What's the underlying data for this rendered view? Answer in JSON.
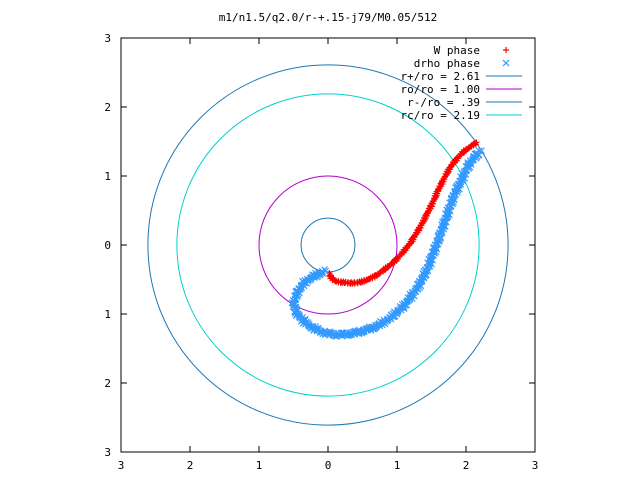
{
  "chart_data": {
    "type": "scatter",
    "title": "m1/n1.5/q2.0/r-+.15-j79/M0.05/512",
    "xlabel": "",
    "ylabel": "",
    "xlim": [
      -3,
      3
    ],
    "ylim": [
      -3,
      3
    ],
    "x_tick_values": [
      -3,
      -2,
      -1,
      0,
      1,
      2,
      3
    ],
    "x_tick_labels": [
      "3",
      "2",
      "1",
      "0",
      "1",
      "2",
      "3"
    ],
    "y_tick_values": [
      3,
      2,
      1,
      0,
      -1,
      -2,
      -3
    ],
    "y_tick_labels": [
      "3",
      "2",
      "1",
      "0",
      "1",
      "2",
      "3"
    ],
    "grid": false,
    "legend_position": "top-right",
    "series": [
      {
        "name": "W phase",
        "kind": "points",
        "marker": "plus",
        "color": "#ff0000",
        "points": [
          [
            0.02,
            -0.42
          ],
          [
            0.05,
            -0.48
          ],
          [
            0.1,
            -0.52
          ],
          [
            0.2,
            -0.54
          ],
          [
            0.3,
            -0.55
          ],
          [
            0.4,
            -0.55
          ],
          [
            0.5,
            -0.53
          ],
          [
            0.6,
            -0.49
          ],
          [
            0.7,
            -0.44
          ],
          [
            0.8,
            -0.37
          ],
          [
            0.9,
            -0.29
          ],
          [
            1.0,
            -0.2
          ],
          [
            1.1,
            -0.09
          ],
          [
            1.2,
            0.04
          ],
          [
            1.3,
            0.2
          ],
          [
            1.4,
            0.38
          ],
          [
            1.5,
            0.58
          ],
          [
            1.6,
            0.8
          ],
          [
            1.7,
            1.0
          ],
          [
            1.8,
            1.17
          ],
          [
            1.9,
            1.29
          ],
          [
            2.0,
            1.38
          ],
          [
            2.1,
            1.45
          ],
          [
            2.15,
            1.48
          ]
        ]
      },
      {
        "name": "drho phase",
        "kind": "points",
        "marker": "cross",
        "color": "#3399ff",
        "points": [
          [
            -0.05,
            -0.38
          ],
          [
            -0.2,
            -0.45
          ],
          [
            -0.35,
            -0.55
          ],
          [
            -0.45,
            -0.7
          ],
          [
            -0.5,
            -0.85
          ],
          [
            -0.45,
            -1.0
          ],
          [
            -0.3,
            -1.15
          ],
          [
            -0.1,
            -1.26
          ],
          [
            0.1,
            -1.3
          ],
          [
            0.3,
            -1.29
          ],
          [
            0.5,
            -1.25
          ],
          [
            0.7,
            -1.18
          ],
          [
            0.9,
            -1.06
          ],
          [
            1.1,
            -0.88
          ],
          [
            1.3,
            -0.62
          ],
          [
            1.45,
            -0.32
          ],
          [
            1.58,
            0.02
          ],
          [
            1.7,
            0.36
          ],
          [
            1.82,
            0.7
          ],
          [
            1.95,
            0.98
          ],
          [
            2.05,
            1.18
          ],
          [
            2.15,
            1.3
          ],
          [
            2.2,
            1.35
          ]
        ]
      },
      {
        "name": "r+/ro = 2.61",
        "kind": "circle",
        "radius": 2.61,
        "color": "#1f77b4"
      },
      {
        "name": "ro/ro = 1.00",
        "kind": "circle",
        "radius": 1.0,
        "color": "#b000c8"
      },
      {
        "name": "r-/ro = .39",
        "kind": "circle",
        "radius": 0.39,
        "color": "#1f77b4"
      },
      {
        "name": "rc/ro = 2.19",
        "kind": "circle",
        "radius": 2.19,
        "color": "#00d0d0"
      }
    ]
  }
}
